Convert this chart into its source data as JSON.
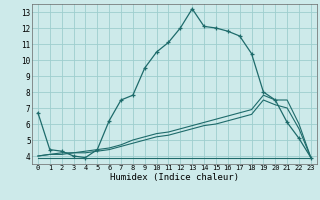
{
  "xlabel": "Humidex (Indice chaleur)",
  "xlim": [
    -0.5,
    23.5
  ],
  "ylim": [
    3.5,
    13.5
  ],
  "xticks": [
    0,
    1,
    2,
    3,
    4,
    5,
    6,
    7,
    8,
    9,
    10,
    11,
    12,
    13,
    14,
    15,
    16,
    17,
    18,
    19,
    20,
    21,
    22,
    23
  ],
  "yticks": [
    4,
    5,
    6,
    7,
    8,
    9,
    10,
    11,
    12,
    13
  ],
  "background_color": "#cdeaea",
  "grid_color": "#9ecece",
  "line_color": "#1e6b6b",
  "line1_x": [
    0,
    1,
    2,
    3,
    4,
    5,
    6,
    7,
    8,
    9,
    10,
    11,
    12,
    13,
    14,
    15,
    16,
    17,
    18,
    19,
    20,
    21,
    22,
    23
  ],
  "line1_y": [
    6.7,
    4.4,
    4.3,
    4.0,
    3.9,
    4.4,
    6.2,
    7.5,
    7.8,
    9.5,
    10.5,
    11.1,
    12.0,
    13.2,
    12.1,
    12.0,
    11.8,
    11.5,
    10.4,
    8.0,
    7.5,
    6.1,
    5.1,
    3.9
  ],
  "line2_x": [
    0,
    1,
    2,
    3,
    4,
    5,
    6,
    7,
    8,
    9,
    10,
    11,
    12,
    13,
    14,
    15,
    16,
    17,
    18,
    19,
    20,
    21,
    22,
    23
  ],
  "line2_y": [
    3.9,
    3.9,
    3.9,
    3.9,
    3.9,
    3.9,
    3.9,
    3.9,
    3.9,
    3.9,
    3.9,
    3.9,
    3.9,
    3.9,
    3.9,
    3.9,
    3.9,
    3.9,
    3.9,
    3.9,
    3.9,
    3.9,
    3.9,
    3.9
  ],
  "line3_x": [
    0,
    1,
    2,
    3,
    4,
    5,
    6,
    7,
    8,
    9,
    10,
    11,
    12,
    13,
    14,
    15,
    16,
    17,
    18,
    19,
    20,
    21,
    22,
    23
  ],
  "line3_y": [
    4.0,
    4.1,
    4.2,
    4.2,
    4.3,
    4.4,
    4.5,
    4.7,
    5.0,
    5.2,
    5.4,
    5.5,
    5.7,
    5.9,
    6.1,
    6.3,
    6.5,
    6.7,
    6.9,
    7.8,
    7.5,
    7.5,
    6.0,
    3.9
  ],
  "line4_x": [
    0,
    1,
    2,
    3,
    4,
    5,
    6,
    7,
    8,
    9,
    10,
    11,
    12,
    13,
    14,
    15,
    16,
    17,
    18,
    19,
    20,
    21,
    22,
    23
  ],
  "line4_y": [
    4.0,
    4.1,
    4.1,
    4.2,
    4.2,
    4.3,
    4.4,
    4.6,
    4.8,
    5.0,
    5.2,
    5.3,
    5.5,
    5.7,
    5.9,
    6.0,
    6.2,
    6.4,
    6.6,
    7.5,
    7.2,
    7.0,
    5.7,
    3.9
  ]
}
